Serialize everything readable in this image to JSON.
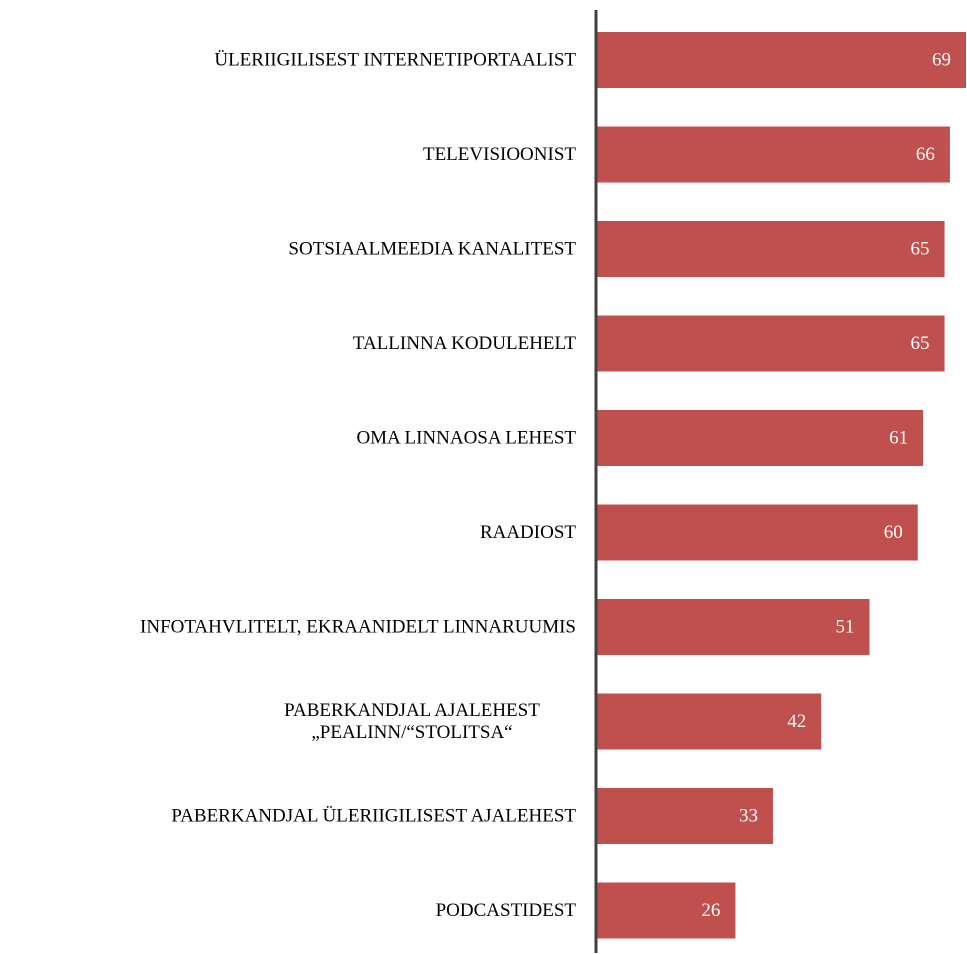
{
  "chart_data": {
    "type": "bar",
    "orientation": "horizontal",
    "categories": [
      [
        "ÜLERIIGILISEST INTERNETIPORTAALIST"
      ],
      [
        "TELEVISIOONIST"
      ],
      [
        "SOTSIAALMEEDIA KANALITEST"
      ],
      [
        "TALLINNA KODULEHELT"
      ],
      [
        "OMA LINNAOSA LEHEST"
      ],
      [
        "RAADIOST"
      ],
      [
        "INFOTAHVLITELT, EKRAANIDELT LINNARUUMIS"
      ],
      [
        "PABERKANDJAL AJALEHEST",
        "„PEALINN/“STOLITSA“"
      ],
      [
        "PABERKANDJAL ÜLERIIGILISEST AJALEHEST"
      ],
      [
        "PODCASTIDEST"
      ]
    ],
    "values": [
      69,
      66,
      65,
      65,
      61,
      60,
      51,
      42,
      33,
      26
    ],
    "data_labels": [
      "69",
      "66",
      "65",
      "65",
      "61",
      "60",
      "51",
      "42",
      "33",
      "26"
    ],
    "xlim": [
      0,
      69
    ],
    "gridlines": false,
    "legend": "none",
    "colors": {
      "bar": "#c0504d",
      "axis": "#404040",
      "value_text": "#ffffff",
      "category_text": "#000000"
    }
  }
}
